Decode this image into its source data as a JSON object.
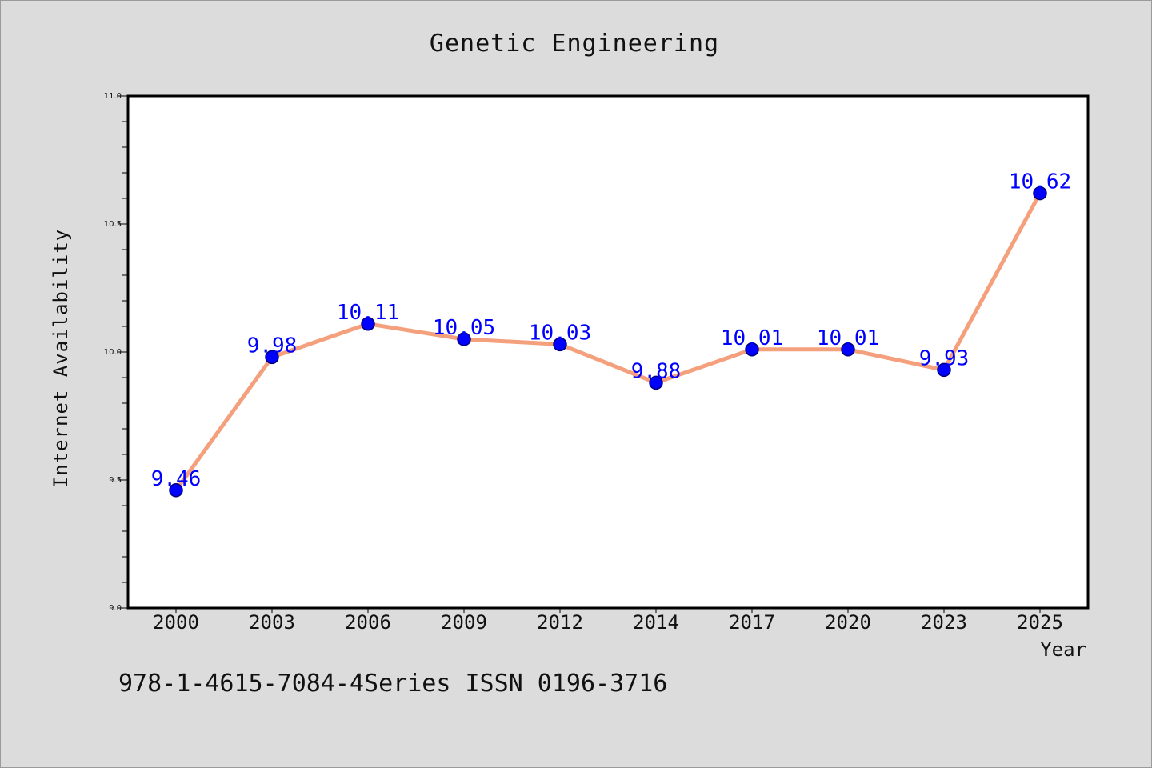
{
  "chart_data": {
    "type": "line",
    "title": "Genetic Engineering",
    "xlabel": "Year",
    "ylabel": "Internet Availability",
    "categories": [
      "2000",
      "2003",
      "2006",
      "2009",
      "2012",
      "2014",
      "2017",
      "2020",
      "2023",
      "2025"
    ],
    "values": [
      9.46,
      9.98,
      10.11,
      10.05,
      10.03,
      9.88,
      10.01,
      10.01,
      9.93,
      10.62
    ],
    "data_labels": [
      "9.46",
      "9.98",
      "10.11",
      "10.05",
      "10.03",
      "9.88",
      "10.01",
      "10.01",
      "9.93",
      "10.62"
    ],
    "ylim": [
      9.0,
      11.0
    ],
    "yticks": [
      {
        "value": 9.0,
        "label": "9.0"
      },
      {
        "value": 9.5,
        "label": "9.5"
      },
      {
        "value": 10.0,
        "label": "10.0"
      },
      {
        "value": 10.5,
        "label": "10.5"
      },
      {
        "value": 11.0,
        "label": "11.0"
      }
    ],
    "yminor_step": 0.1,
    "grid": false,
    "legend": "none",
    "line_color": "#f4a07c",
    "marker_color": "#0000ff",
    "label_color": "#0000ff"
  },
  "footer": {
    "text": "978-1-4615-7084-4Series ISSN 0196-3716"
  }
}
